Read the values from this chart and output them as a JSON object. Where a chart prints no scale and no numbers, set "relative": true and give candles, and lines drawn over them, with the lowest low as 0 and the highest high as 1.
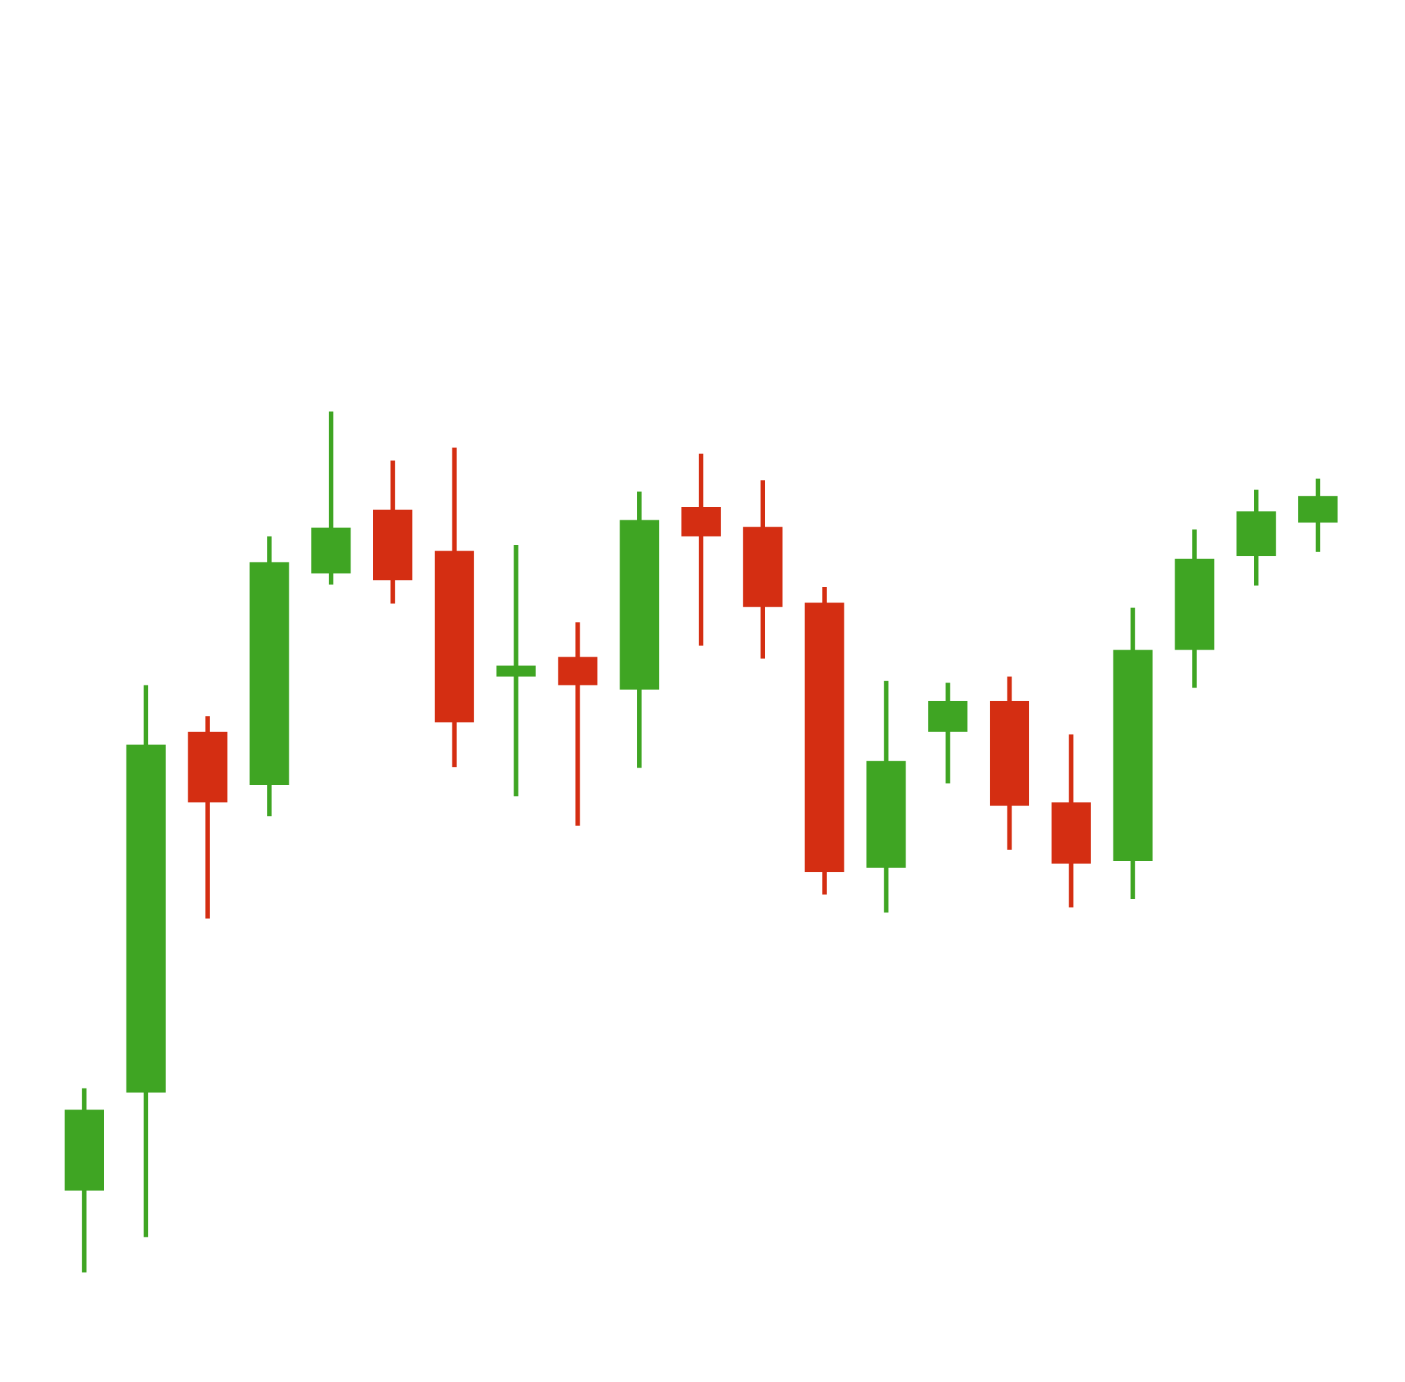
{
  "chart_data": {
    "type": "candlestick",
    "relative": true,
    "categories": [
      null,
      null,
      null,
      null,
      null,
      null,
      null,
      null,
      null,
      null,
      null,
      null,
      null,
      null,
      null,
      null,
      null,
      null,
      null,
      null,
      null
    ],
    "ohlc": [
      [
        0.095,
        0.214,
        0,
        0.189
      ],
      [
        0.209,
        0.682,
        0.041,
        0.613
      ],
      [
        0.628,
        0.646,
        0.411,
        0.546
      ],
      [
        0.566,
        0.855,
        0.53,
        0.825
      ],
      [
        0.812,
        1,
        0.799,
        0.865
      ],
      [
        0.886,
        0.943,
        0.777,
        0.804
      ],
      [
        0.838,
        0.958,
        0.587,
        0.639
      ],
      [
        0.692,
        0.845,
        0.553,
        0.705
      ],
      [
        0.715,
        0.755,
        0.519,
        0.682
      ],
      [
        0.677,
        0.907,
        0.586,
        0.874
      ],
      [
        0.889,
        0.951,
        0.728,
        0.855
      ],
      [
        0.866,
        0.92,
        0.713,
        0.773
      ],
      [
        0.778,
        0.796,
        0.439,
        0.465
      ],
      [
        0.47,
        0.687,
        0.418,
        0.594
      ],
      [
        0.628,
        0.685,
        0.568,
        0.664
      ],
      [
        0.664,
        0.692,
        0.491,
        0.542
      ],
      [
        0.546,
        0.625,
        0.424,
        0.475
      ],
      [
        0.478,
        0.772,
        0.434,
        0.723
      ],
      [
        0.723,
        0.863,
        0.679,
        0.829
      ],
      [
        0.832,
        0.909,
        0.798,
        0.884
      ],
      [
        0.871,
        0.922,
        0.837,
        0.902
      ]
    ],
    "colors": [
      "#3fa523",
      "#3fa523",
      "#d42e12",
      "#3fa523",
      "#3fa523",
      "#d42e12",
      "#d42e12",
      "#3fa523",
      "#d42e12",
      "#3fa523",
      "#d42e12",
      "#d42e12",
      "#d42e12",
      "#3fa523",
      "#3fa523",
      "#d42e12",
      "#d42e12",
      "#3fa523",
      "#3fa523",
      "#3fa523",
      "#3fa523"
    ]
  }
}
